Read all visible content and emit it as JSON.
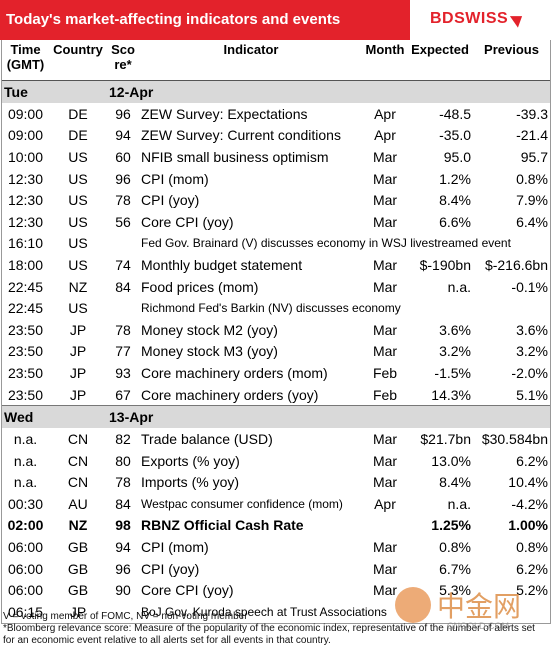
{
  "header": {
    "title": "Today's market-affecting indicators and events",
    "logo": "BDSWISS"
  },
  "columns": [
    "Time (GMT)",
    "Country",
    "Score*",
    "Indicator",
    "Month",
    "Expected",
    "Previous"
  ],
  "sections": [
    {
      "day": "Tue",
      "date": "12-Apr",
      "rows": [
        {
          "time": "09:00",
          "country": "DE",
          "score": "96",
          "indicator": "ZEW Survey: Expectations",
          "month": "Apr",
          "expected": "-48.5",
          "previous": "-39.3"
        },
        {
          "time": "09:00",
          "country": "DE",
          "score": "94",
          "indicator": "ZEW Survey: Current conditions",
          "month": "Apr",
          "expected": "-35.0",
          "previous": "-21.4"
        },
        {
          "time": "10:00",
          "country": "US",
          "score": "60",
          "indicator": "NFIB small business optimism",
          "month": "Mar",
          "expected": "95.0",
          "previous": "95.7"
        },
        {
          "time": "12:30",
          "country": "US",
          "score": "96",
          "indicator": "CPI (mom)",
          "month": "Mar",
          "expected": "1.2%",
          "previous": "0.8%"
        },
        {
          "time": "12:30",
          "country": "US",
          "score": "78",
          "indicator": "CPI (yoy)",
          "month": "Mar",
          "expected": "8.4%",
          "previous": "7.9%"
        },
        {
          "time": "12:30",
          "country": "US",
          "score": "56",
          "indicator": "Core CPI (yoy)",
          "month": "Mar",
          "expected": "6.6%",
          "previous": "6.4%"
        },
        {
          "time": "16:10",
          "country": "US",
          "event": "Fed Gov. Brainard (V) discusses economy in WSJ livestreamed event"
        },
        {
          "time": "18:00",
          "country": "US",
          "score": "74",
          "indicator": "Monthly budget statement",
          "month": "Mar",
          "expected": "$-190bn",
          "previous": "$-216.6bn"
        },
        {
          "time": "22:45",
          "country": "NZ",
          "score": "84",
          "indicator": "Food prices (mom)",
          "month": "Mar",
          "expected": "n.a.",
          "previous": "-0.1%"
        },
        {
          "time": "22:45",
          "country": "US",
          "event": "Richmond Fed's Barkin (NV) discusses economy"
        },
        {
          "time": "23:50",
          "country": "JP",
          "score": "78",
          "indicator": "Money stock M2 (yoy)",
          "month": "Mar",
          "expected": "3.6%",
          "previous": "3.6%"
        },
        {
          "time": "23:50",
          "country": "JP",
          "score": "77",
          "indicator": "Money stock M3 (yoy)",
          "month": "Mar",
          "expected": "3.2%",
          "previous": "3.2%"
        },
        {
          "time": "23:50",
          "country": "JP",
          "score": "93",
          "indicator": "Core machinery orders (mom)",
          "month": "Feb",
          "expected": "-1.5%",
          "previous": "-2.0%"
        },
        {
          "time": "23:50",
          "country": "JP",
          "score": "67",
          "indicator": "Core machinery orders (yoy)",
          "month": "Feb",
          "expected": "14.3%",
          "previous": "5.1%"
        }
      ]
    },
    {
      "day": "Wed",
      "date": "13-Apr",
      "rows": [
        {
          "time": "n.a.",
          "country": "CN",
          "score": "82",
          "indicator": "Trade balance (USD)",
          "month": "Mar",
          "expected": "$21.7bn",
          "previous": "$30.584bn"
        },
        {
          "time": "n.a.",
          "country": "CN",
          "score": "80",
          "indicator": "Exports (% yoy)",
          "month": "Mar",
          "expected": "13.0%",
          "previous": "6.2%"
        },
        {
          "time": "n.a.",
          "country": "CN",
          "score": "78",
          "indicator": "Imports (% yoy)",
          "month": "Mar",
          "expected": "8.4%",
          "previous": "10.4%"
        },
        {
          "time": "00:30",
          "country": "AU",
          "score": "84",
          "indicator": "Westpac consumer confidence (mom)",
          "month": "Apr",
          "expected": "n.a.",
          "previous": "-4.2%"
        },
        {
          "time": "02:00",
          "country": "NZ",
          "score": "98",
          "indicator": "RBNZ Official Cash Rate",
          "expected": "1.25%",
          "previous": "1.00%",
          "bold": true
        },
        {
          "time": "06:00",
          "country": "GB",
          "score": "94",
          "indicator": "CPI (mom)",
          "month": "Mar",
          "expected": "0.8%",
          "previous": "0.8%"
        },
        {
          "time": "06:00",
          "country": "GB",
          "score": "96",
          "indicator": "CPI (yoy)",
          "month": "Mar",
          "expected": "6.7%",
          "previous": "6.2%"
        },
        {
          "time": "06:00",
          "country": "GB",
          "score": "90",
          "indicator": "Core CPI (yoy)",
          "month": "Mar",
          "expected": "5.3%",
          "previous": "5.2%"
        },
        {
          "time": "06:15",
          "country": "JP",
          "event": "BoJ Gov. Kuroda speech at Trust Associations"
        }
      ]
    }
  ],
  "notes": [
    "V = voting member of FOMC, NV = non-voting member",
    "*Bloomberg relevance score:  Measure of the popularity of the economic index, representative of the number of alerts set for an economic event relative to all alerts set for all events in that country."
  ],
  "watermark": {
    "text": "中金网",
    "url": "CNGOLD.COM"
  }
}
